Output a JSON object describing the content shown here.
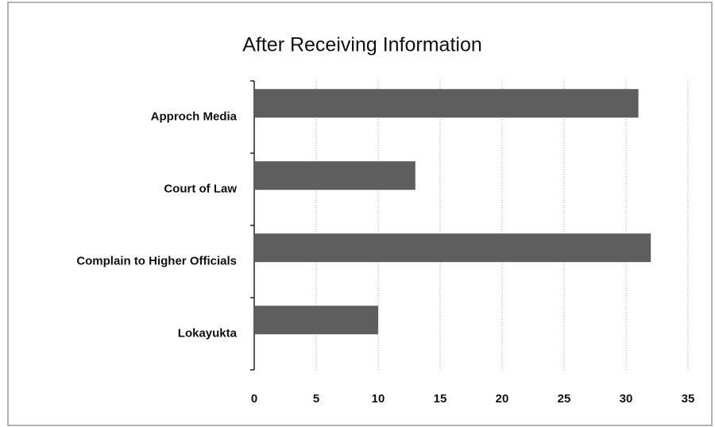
{
  "chart_data": {
    "type": "bar",
    "orientation": "horizontal",
    "title": "After Receiving Information",
    "categories": [
      "Approch Media",
      "Court of Law",
      "Complain to Higher Officials",
      "Lokayukta"
    ],
    "values": [
      31,
      13,
      32,
      10
    ],
    "color": "#5e5e5e",
    "xlim": [
      0,
      35
    ],
    "xticks": [
      0,
      5,
      10,
      15,
      20,
      25,
      30,
      35
    ],
    "grid": true
  }
}
